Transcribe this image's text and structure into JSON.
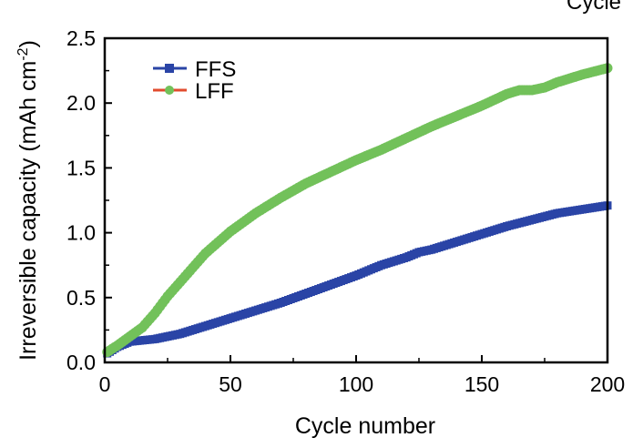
{
  "corner_text": "Cycle",
  "chart_data": {
    "type": "line",
    "title": "",
    "xlabel": "Cycle number",
    "ylabel": "Irreversible capacity (mAh cm",
    "ylabel_sup": "-2",
    "ylabel_close": ")",
    "xlim": [
      0,
      200
    ],
    "ylim": [
      0,
      2.5
    ],
    "xticks": [
      "0",
      "50",
      "100",
      "150",
      "200"
    ],
    "yticks": [
      "0.0",
      "0.5",
      "1.0",
      "1.5",
      "2.0",
      "2.5"
    ],
    "legend_position": "top-left",
    "grid": false,
    "series": [
      {
        "name": "FFS",
        "color": "#2a44a6",
        "marker": "square",
        "x": [
          1,
          5,
          10,
          15,
          20,
          25,
          30,
          40,
          50,
          60,
          70,
          80,
          90,
          100,
          110,
          120,
          125,
          130,
          140,
          150,
          160,
          170,
          180,
          190,
          200
        ],
        "y": [
          0.07,
          0.12,
          0.16,
          0.17,
          0.18,
          0.2,
          0.22,
          0.28,
          0.34,
          0.4,
          0.46,
          0.53,
          0.6,
          0.67,
          0.75,
          0.81,
          0.85,
          0.87,
          0.93,
          0.99,
          1.05,
          1.1,
          1.15,
          1.18,
          1.21
        ]
      },
      {
        "name": "LFF",
        "color": "#72c15a",
        "marker": "circle",
        "x": [
          1,
          5,
          10,
          15,
          20,
          25,
          30,
          40,
          50,
          60,
          70,
          80,
          90,
          100,
          110,
          120,
          130,
          140,
          150,
          160,
          165,
          170,
          175,
          180,
          190,
          200
        ],
        "y": [
          0.08,
          0.13,
          0.2,
          0.27,
          0.38,
          0.51,
          0.62,
          0.84,
          1.01,
          1.15,
          1.27,
          1.38,
          1.47,
          1.56,
          1.64,
          1.73,
          1.82,
          1.9,
          1.98,
          2.07,
          2.1,
          2.1,
          2.12,
          2.16,
          2.22,
          2.27
        ]
      }
    ]
  }
}
